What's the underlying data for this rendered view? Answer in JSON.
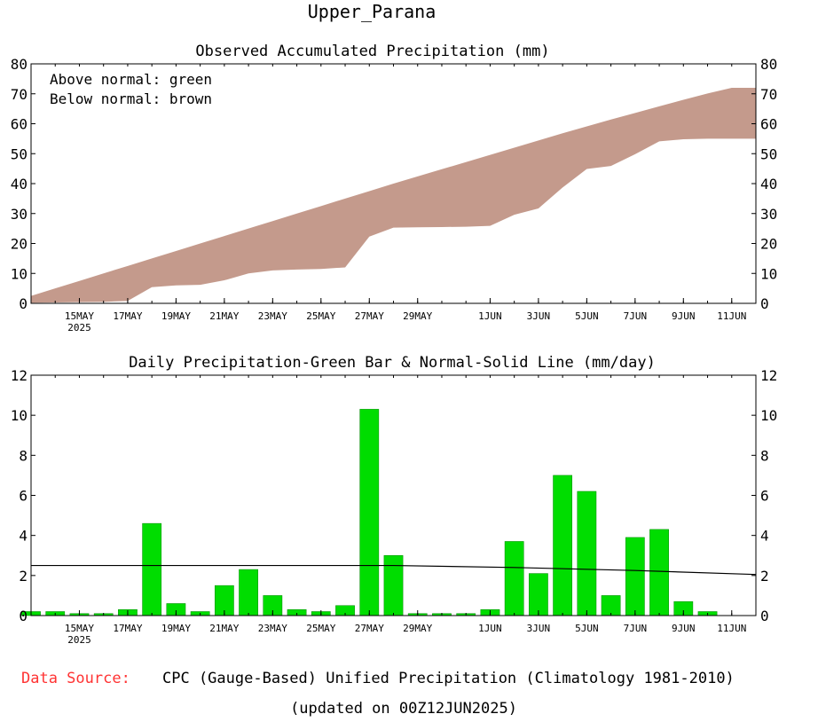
{
  "region": "Upper_Parana",
  "colors": {
    "deficit": "#c49a8c",
    "surplus": "#00dd00",
    "bar": "#00dd00",
    "bar_edge": "#008800",
    "normal_line": "#000000",
    "source_label": "#ff3333"
  },
  "chart_data": [
    {
      "type": "area",
      "title": "Observed Accumulated Precipitation (mm)",
      "legend": [
        "Above normal: green",
        "Below normal: brown"
      ],
      "ylim": [
        0,
        80
      ],
      "yticks": [
        "0",
        "10",
        "20",
        "30",
        "40",
        "50",
        "60",
        "70",
        "80"
      ],
      "xticks": [
        "15MAY",
        "17MAY",
        "19MAY",
        "21MAY",
        "23MAY",
        "25MAY",
        "27MAY",
        "29MAY",
        "1JUN",
        "3JUN",
        "5JUN",
        "7JUN",
        "9JUN",
        "11JUN"
      ],
      "xtick_days": [
        2,
        4,
        6,
        8,
        10,
        12,
        14,
        16,
        19,
        21,
        23,
        25,
        27,
        29
      ],
      "year_label": "2025",
      "days": [
        0,
        1,
        2,
        3,
        4,
        5,
        6,
        7,
        8,
        9,
        10,
        11,
        12,
        13,
        14,
        15,
        16,
        17,
        18,
        19,
        20,
        21,
        22,
        23,
        24,
        25,
        26,
        27,
        28,
        29,
        30
      ],
      "series": [
        {
          "name": "Normal accumulated",
          "values": [
            2.5,
            5,
            7.5,
            10,
            12.5,
            15,
            17.5,
            20,
            22.5,
            25,
            27.5,
            30,
            32.5,
            35,
            37.5,
            40,
            42.4,
            44.8,
            47.2,
            49.6,
            52,
            54.4,
            56.8,
            59.1,
            61.4,
            63.6,
            65.8,
            68,
            70.1,
            72,
            72
          ]
        },
        {
          "name": "Observed accumulated",
          "values": [
            0.2,
            0.3,
            0.4,
            0.5,
            0.8,
            5.4,
            6,
            6.2,
            7.7,
            10,
            11,
            11.3,
            11.5,
            12,
            22.3,
            25.3,
            25.4,
            25.5,
            25.6,
            25.9,
            29.6,
            31.7,
            38.7,
            44.9,
            45.9,
            49.8,
            54.1,
            54.8,
            55,
            55,
            55
          ]
        }
      ]
    },
    {
      "type": "bar",
      "title": "Daily Precipitation-Green Bar & Normal-Solid Line (mm/day)",
      "ylim": [
        0,
        12
      ],
      "yticks": [
        "0",
        "2",
        "4",
        "6",
        "8",
        "10",
        "12"
      ],
      "xticks": [
        "15MAY",
        "17MAY",
        "19MAY",
        "21MAY",
        "23MAY",
        "25MAY",
        "27MAY",
        "29MAY",
        "1JUN",
        "3JUN",
        "5JUN",
        "7JUN",
        "9JUN",
        "11JUN"
      ],
      "xtick_days": [
        2,
        4,
        6,
        8,
        10,
        12,
        14,
        16,
        19,
        21,
        23,
        25,
        27,
        29
      ],
      "year_label": "2025",
      "days": [
        0,
        1,
        2,
        3,
        4,
        5,
        6,
        7,
        8,
        9,
        10,
        11,
        12,
        13,
        14,
        15,
        16,
        17,
        18,
        19,
        20,
        21,
        22,
        23,
        24,
        25,
        26,
        27,
        28,
        29,
        30
      ],
      "values": [
        0.2,
        0.2,
        0.1,
        0.1,
        0.3,
        4.6,
        0.6,
        0.2,
        1.5,
        2.3,
        1,
        0.3,
        0.2,
        0.5,
        10.3,
        3,
        0.1,
        0.1,
        0.1,
        0.3,
        3.7,
        2.1,
        7,
        6.2,
        1,
        3.9,
        4.3,
        0.7,
        0.2,
        0,
        0
      ],
      "normal_points": [
        {
          "day": 0,
          "value": 2.5
        },
        {
          "day": 15,
          "value": 2.5
        },
        {
          "day": 20,
          "value": 2.4
        },
        {
          "day": 25,
          "value": 2.25
        },
        {
          "day": 30,
          "value": 2.05
        }
      ]
    }
  ],
  "footer": {
    "source_label": "Data Source:",
    "source_text": "CPC (Gauge-Based) Unified Precipitation (Climatology 1981-2010)",
    "updated": "(updated on 00Z12JUN2025)"
  }
}
